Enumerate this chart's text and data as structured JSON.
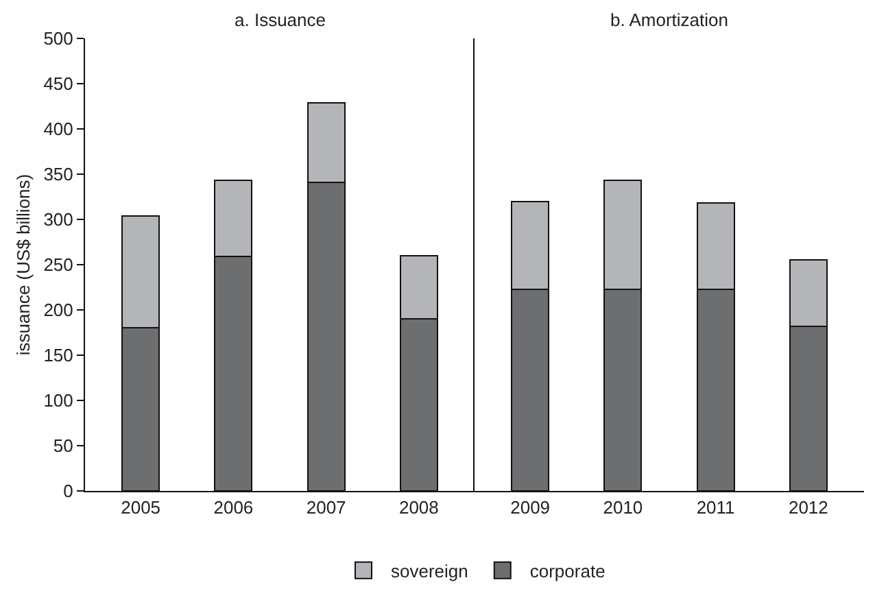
{
  "chart_data": [
    {
      "type": "bar",
      "title": "a. Issuance",
      "ylabel": "issuance (US$ billions)",
      "categories": [
        "2005",
        "2006",
        "2007",
        "2008"
      ],
      "stacked": true,
      "ylim": [
        0,
        500
      ],
      "yticks": [
        0,
        50,
        100,
        150,
        200,
        250,
        300,
        350,
        400,
        450,
        500
      ],
      "legend": "bottom",
      "series": [
        {
          "name": "corporate",
          "color": "#6d6e70",
          "values": [
            180,
            259,
            341,
            190
          ]
        },
        {
          "name": "sovereign",
          "color": "#b4b5b8",
          "values": [
            124,
            84,
            88,
            70
          ]
        }
      ]
    },
    {
      "type": "bar",
      "title": "b. Amortization",
      "categories": [
        "2009",
        "2010",
        "2011",
        "2012"
      ],
      "stacked": true,
      "ylim": [
        0,
        500
      ],
      "tick_labels": "x",
      "series": [
        {
          "color": "#6d6e70",
          "values": [
            223,
            223,
            223,
            182
          ]
        },
        {
          "color": "#b4b5b8",
          "values": [
            97,
            120,
            95,
            73
          ]
        }
      ]
    }
  ]
}
